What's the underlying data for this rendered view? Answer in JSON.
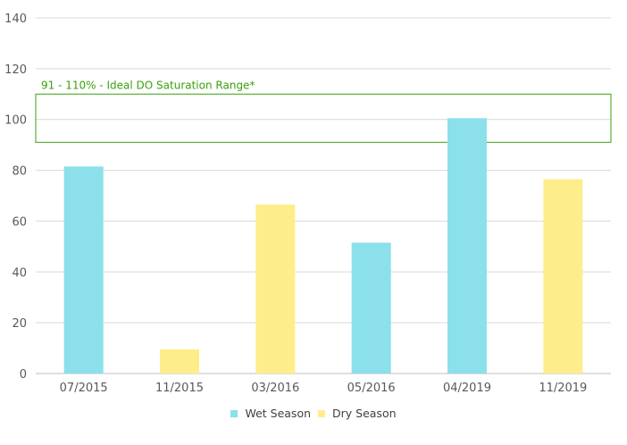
{
  "chart_data": {
    "type": "bar",
    "categories": [
      "07/2015",
      "11/2015",
      "03/2016",
      "05/2016",
      "04/2019",
      "11/2019"
    ],
    "values": [
      81.5,
      9.5,
      66.5,
      51.5,
      100.5,
      76.5
    ],
    "season": [
      "wet",
      "dry",
      "dry",
      "wet",
      "wet",
      "dry"
    ],
    "series": [
      {
        "name": "Wet Season",
        "key": "wet",
        "color": "#8be0eb"
      },
      {
        "name": "Dry Season",
        "key": "dry",
        "color": "#fdee8b"
      }
    ],
    "ylim": [
      0,
      140
    ],
    "yticks": [
      0,
      20,
      40,
      60,
      80,
      100,
      120,
      140
    ],
    "grid": true,
    "legend_position": "bottom",
    "annotation": {
      "label": "91 - 110% - Ideal DO Saturation Range*",
      "range": [
        91,
        110
      ],
      "color": "#3aa010"
    }
  },
  "legend": {
    "wet_label": "Wet Season",
    "dry_label": "Dry Season"
  }
}
